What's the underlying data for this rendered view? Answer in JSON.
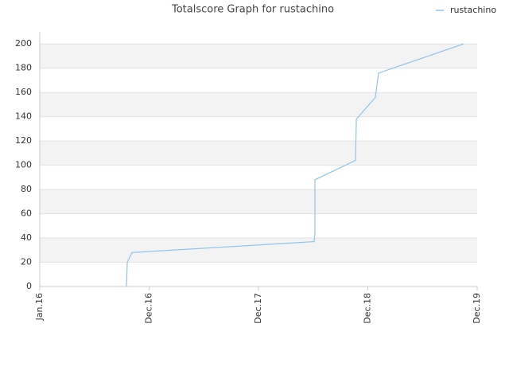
{
  "chart_data": {
    "type": "line",
    "title": "Totalscore Graph for rustachino",
    "series": [
      {
        "name": "rustachino",
        "color": "#8fc3ee",
        "x": [
          2016.793,
          2016.8,
          2016.844,
          2018.509,
          2018.516,
          2018.516,
          2018.887,
          2018.895,
          2019.069,
          2019.098,
          2019.876
        ],
        "values": [
          0,
          20,
          28,
          37,
          44,
          88,
          104,
          138,
          156,
          176,
          200
        ]
      }
    ],
    "xlim": [
      2016,
      2020
    ],
    "xticks": [
      {
        "value": 2016,
        "label": "Jan.16"
      },
      {
        "value": 2017,
        "label": "Dec.16"
      },
      {
        "value": 2018,
        "label": "Dec.17"
      },
      {
        "value": 2019,
        "label": "Dec.18"
      },
      {
        "value": 2020,
        "label": "Dec.19"
      }
    ],
    "ylim": [
      0,
      210
    ],
    "yticks": [
      0,
      20,
      40,
      60,
      80,
      100,
      120,
      140,
      160,
      180,
      200
    ],
    "grid": true,
    "legend": "top-right"
  }
}
